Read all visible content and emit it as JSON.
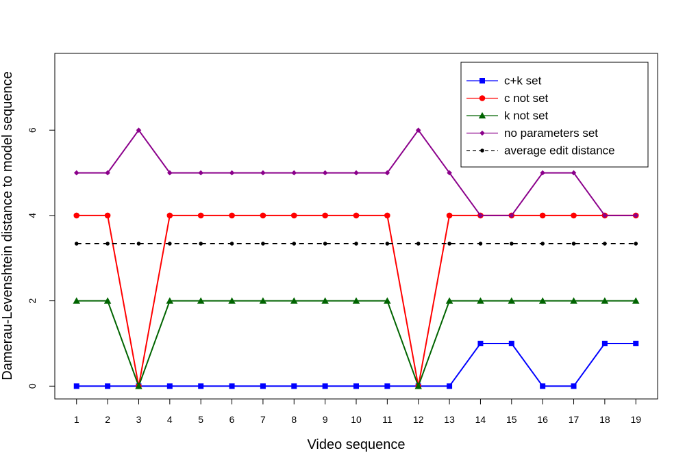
{
  "chart_data": {
    "type": "line",
    "title": "",
    "xlabel": "Video sequence",
    "ylabel": "Damerau-Levenshtein distance to model sequence",
    "x": [
      1,
      2,
      3,
      4,
      5,
      6,
      7,
      8,
      9,
      10,
      11,
      12,
      13,
      14,
      15,
      16,
      17,
      18,
      19
    ],
    "xlim": [
      0.3,
      19.7
    ],
    "ylim": [
      -0.3,
      7.8
    ],
    "yticks": [
      0,
      2,
      4,
      6
    ],
    "grid": false,
    "legend_position": "top-right",
    "series": [
      {
        "name": "c+k set",
        "color": "#0000ff",
        "marker": "square",
        "dash": "solid",
        "values": [
          0,
          0,
          0,
          0,
          0,
          0,
          0,
          0,
          0,
          0,
          0,
          0,
          0,
          1,
          1,
          0,
          0,
          1,
          1
        ]
      },
      {
        "name": "c not set",
        "color": "#ff0000",
        "marker": "circle",
        "dash": "solid",
        "values": [
          4,
          4,
          0,
          4,
          4,
          4,
          4,
          4,
          4,
          4,
          4,
          0,
          4,
          4,
          4,
          4,
          4,
          4,
          4
        ]
      },
      {
        "name": "k not set",
        "color": "#006400",
        "marker": "triangle",
        "dash": "solid",
        "values": [
          2,
          2,
          0,
          2,
          2,
          2,
          2,
          2,
          2,
          2,
          2,
          0,
          2,
          2,
          2,
          2,
          2,
          2,
          2
        ]
      },
      {
        "name": "no parameters set",
        "color": "#8b008b",
        "marker": "diamond",
        "dash": "solid",
        "values": [
          5,
          5,
          6,
          5,
          5,
          5,
          5,
          5,
          5,
          5,
          5,
          6,
          5,
          4,
          4,
          5,
          5,
          4,
          4
        ]
      },
      {
        "name": "average edit distance",
        "color": "#000000",
        "marker": "dot",
        "dash": "dashed",
        "values": [
          3.34,
          3.34,
          3.34,
          3.34,
          3.34,
          3.34,
          3.34,
          3.34,
          3.34,
          3.34,
          3.34,
          3.34,
          3.34,
          3.34,
          3.34,
          3.34,
          3.34,
          3.34,
          3.34
        ]
      }
    ]
  }
}
